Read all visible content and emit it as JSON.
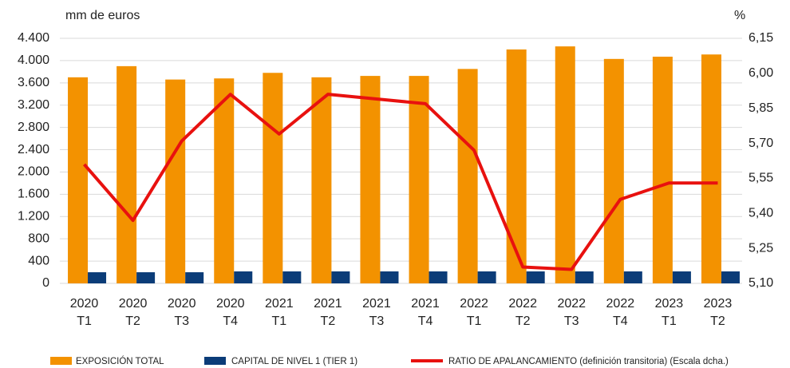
{
  "chart_data": {
    "type": "bar",
    "y_unit_label": "mm de euros",
    "y2_unit_label": "%",
    "categories": [
      [
        "2020",
        "T1"
      ],
      [
        "2020",
        "T2"
      ],
      [
        "2020",
        "T3"
      ],
      [
        "2020",
        "T4"
      ],
      [
        "2021",
        "T1"
      ],
      [
        "2021",
        "T2"
      ],
      [
        "2021",
        "T3"
      ],
      [
        "2021",
        "T4"
      ],
      [
        "2022",
        "T1"
      ],
      [
        "2022",
        "T2"
      ],
      [
        "2022",
        "T3"
      ],
      [
        "2022",
        "T4"
      ],
      [
        "2023",
        "T1"
      ],
      [
        "2023",
        "T2"
      ]
    ],
    "series": [
      {
        "name": "EXPOSICIÓN TOTAL",
        "type": "bar",
        "color": "#f39200",
        "values": [
          3700,
          3900,
          3660,
          3680,
          3780,
          3700,
          3725,
          3725,
          3850,
          4200,
          4255,
          4030,
          4070,
          4110
        ]
      },
      {
        "name": "CAPITAL DE NIVEL 1 (TIER 1)",
        "type": "bar",
        "color": "#0b3c78",
        "values": [
          200,
          200,
          200,
          215,
          215,
          215,
          215,
          215,
          215,
          215,
          215,
          215,
          215,
          215
        ]
      },
      {
        "name": "RATIO DE APALANCAMIENTO (definición transitoria) (Escala dcha.)",
        "type": "line",
        "axis": "y2",
        "color": "#e8110f",
        "values": [
          5.61,
          5.37,
          5.71,
          5.91,
          5.74,
          5.91,
          5.89,
          5.87,
          5.67,
          5.17,
          5.16,
          5.46,
          5.53,
          5.53
        ]
      }
    ],
    "ylim": [
      0,
      4400
    ],
    "yticks": [
      0,
      400,
      800,
      {
        "value": 1200,
        "label": "1.200"
      },
      {
        "value": 1600,
        "label": "1.600"
      },
      {
        "value": 2000,
        "label": "2.000"
      },
      {
        "value": 2400,
        "label": "2.400"
      },
      {
        "value": 2800,
        "label": "2.800"
      },
      {
        "value": 3200,
        "label": "3.200"
      },
      {
        "value": 3600,
        "label": "3.600"
      },
      {
        "value": 4000,
        "label": "4.000"
      },
      {
        "value": 4400,
        "label": "4.400"
      }
    ],
    "y2lim": [
      5.1,
      6.15
    ],
    "y2ticks": [
      {
        "value": 5.1,
        "label": "5,10"
      },
      {
        "value": 5.25,
        "label": "5,25"
      },
      {
        "value": 5.4,
        "label": "5,40"
      },
      {
        "value": 5.55,
        "label": "5,55"
      },
      {
        "value": 5.7,
        "label": "5,70"
      },
      {
        "value": 5.85,
        "label": "5,85"
      },
      {
        "value": 6.0,
        "label": "6,00"
      },
      {
        "value": 6.15,
        "label": "6,15"
      }
    ],
    "grid": true,
    "legend": "bottom"
  }
}
